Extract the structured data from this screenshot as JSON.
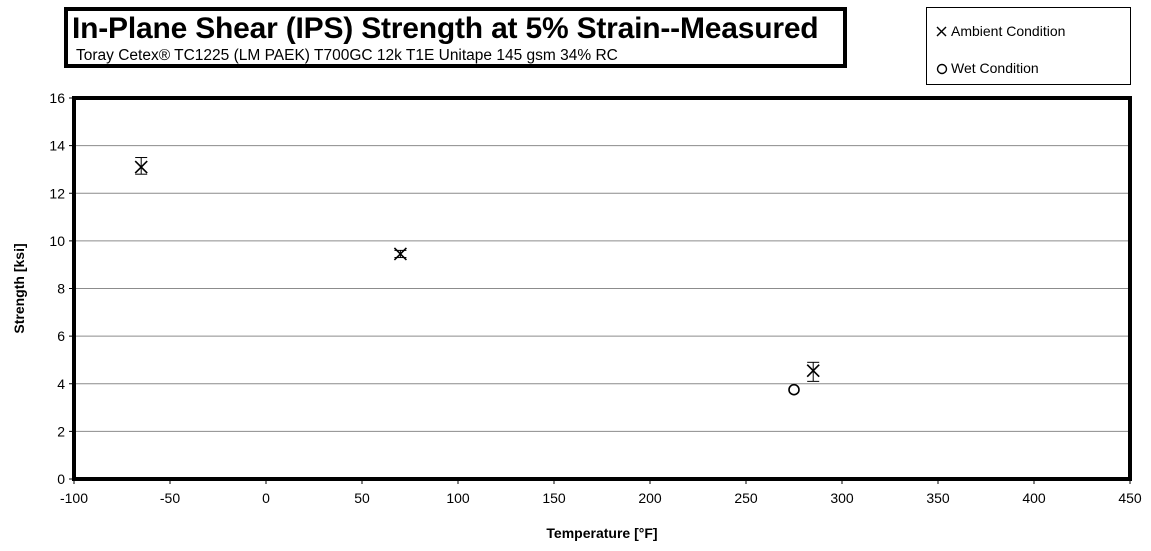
{
  "chart_data": {
    "type": "scatter",
    "title": "In-Plane Shear (IPS) Strength at 5% Strain--Measured",
    "subtitle": "Toray  Cetex® TC1225  (LM  PAEK) T700GC  12k  T1E  Unitape  145  gsm  34%  RC",
    "xlabel": "Temperature [°F]",
    "ylabel": "Strength [ksi]",
    "xlim": [
      -100,
      450
    ],
    "ylim": [
      0,
      16
    ],
    "xticks": [
      -100,
      -50,
      0,
      50,
      100,
      150,
      200,
      250,
      300,
      350,
      400,
      450
    ],
    "yticks": [
      0,
      2,
      4,
      6,
      8,
      10,
      12,
      14,
      16
    ],
    "grid": "horizontal",
    "legend_position": "top-right",
    "series": [
      {
        "name": "Ambient Condition",
        "marker": "x",
        "color": "#000000",
        "points": [
          {
            "x": -65,
            "y": 13.1,
            "err_low": 12.8,
            "err_high": 13.5
          },
          {
            "x": 70,
            "y": 9.45,
            "err_low": 9.3,
            "err_high": 9.6
          },
          {
            "x": 285,
            "y": 4.55,
            "err_low": 4.1,
            "err_high": 4.9
          }
        ]
      },
      {
        "name": "Wet Condition",
        "marker": "circle",
        "color": "#000000",
        "points": [
          {
            "x": 275,
            "y": 3.75
          }
        ]
      }
    ]
  }
}
